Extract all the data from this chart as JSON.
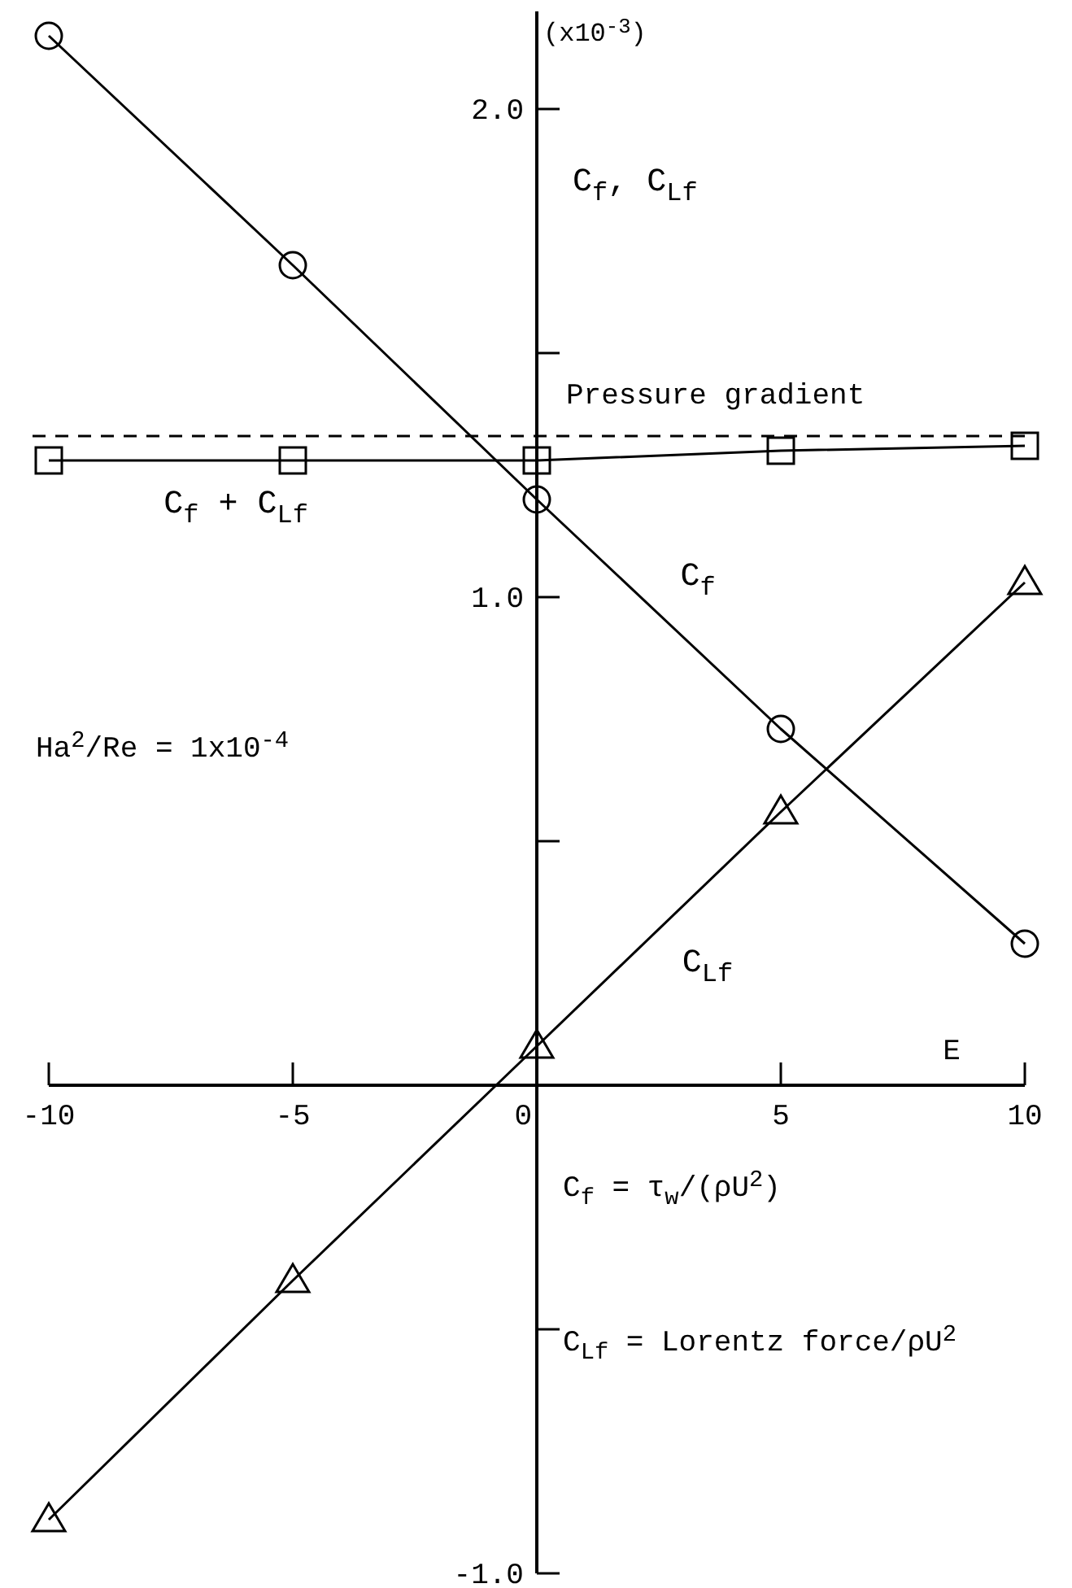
{
  "chart_data": {
    "type": "line",
    "xlabel": "E",
    "ylabel": "C$_{f}$, C$_{Lf}$",
    "x": [
      -10,
      -5,
      0,
      5,
      10
    ],
    "series": [
      {
        "name": "C$_{f}$",
        "color": "#000000",
        "marker": "circle",
        "values": [
          2.15,
          1.68,
          1.2,
          0.73,
          0.29
        ]
      },
      {
        "name": "C$_{f}$ + C$_{Lf}$",
        "color": "#000000",
        "marker": "square",
        "values": [
          1.28,
          1.28,
          1.28,
          1.3,
          1.31
        ]
      },
      {
        "name": "C$_{Lf}$",
        "color": "#000000",
        "marker": "triangle",
        "values": [
          -0.89,
          -0.4,
          0.08,
          0.56,
          1.03
        ]
      }
    ],
    "xlim": [
      -10,
      10
    ],
    "xticks": [
      -10,
      -5,
      0,
      5,
      10
    ],
    "ylim": [
      -1.0,
      2.2
    ],
    "yticks": [
      {
        "value": -1.0,
        "label": "-1.0"
      },
      {
        "value": -0.5,
        "label": null
      },
      {
        "value": 0,
        "label": null
      },
      {
        "value": 0.5,
        "label": null
      },
      {
        "value": 1.0,
        "label": "1.0"
      },
      {
        "value": 1.5,
        "label": null
      },
      {
        "value": 2.0,
        "label": "2.0"
      }
    ],
    "ref_lines": [
      {
        "axis": "y",
        "value": 1.33,
        "label": "Pressure gradient",
        "color": "#000000",
        "line_style": "dashed"
      }
    ],
    "annotations": [
      "(x10$^{-3}$)",
      "Ha$^{2}$/Re = 1x10$^{-4}$",
      "C$_{f}$ = τ$_{w}$/(ρU$^{2}$)",
      "C$_{Lf}$ = Lorentz force/ρU$^{2}$"
    ],
    "line_style": "solid"
  }
}
